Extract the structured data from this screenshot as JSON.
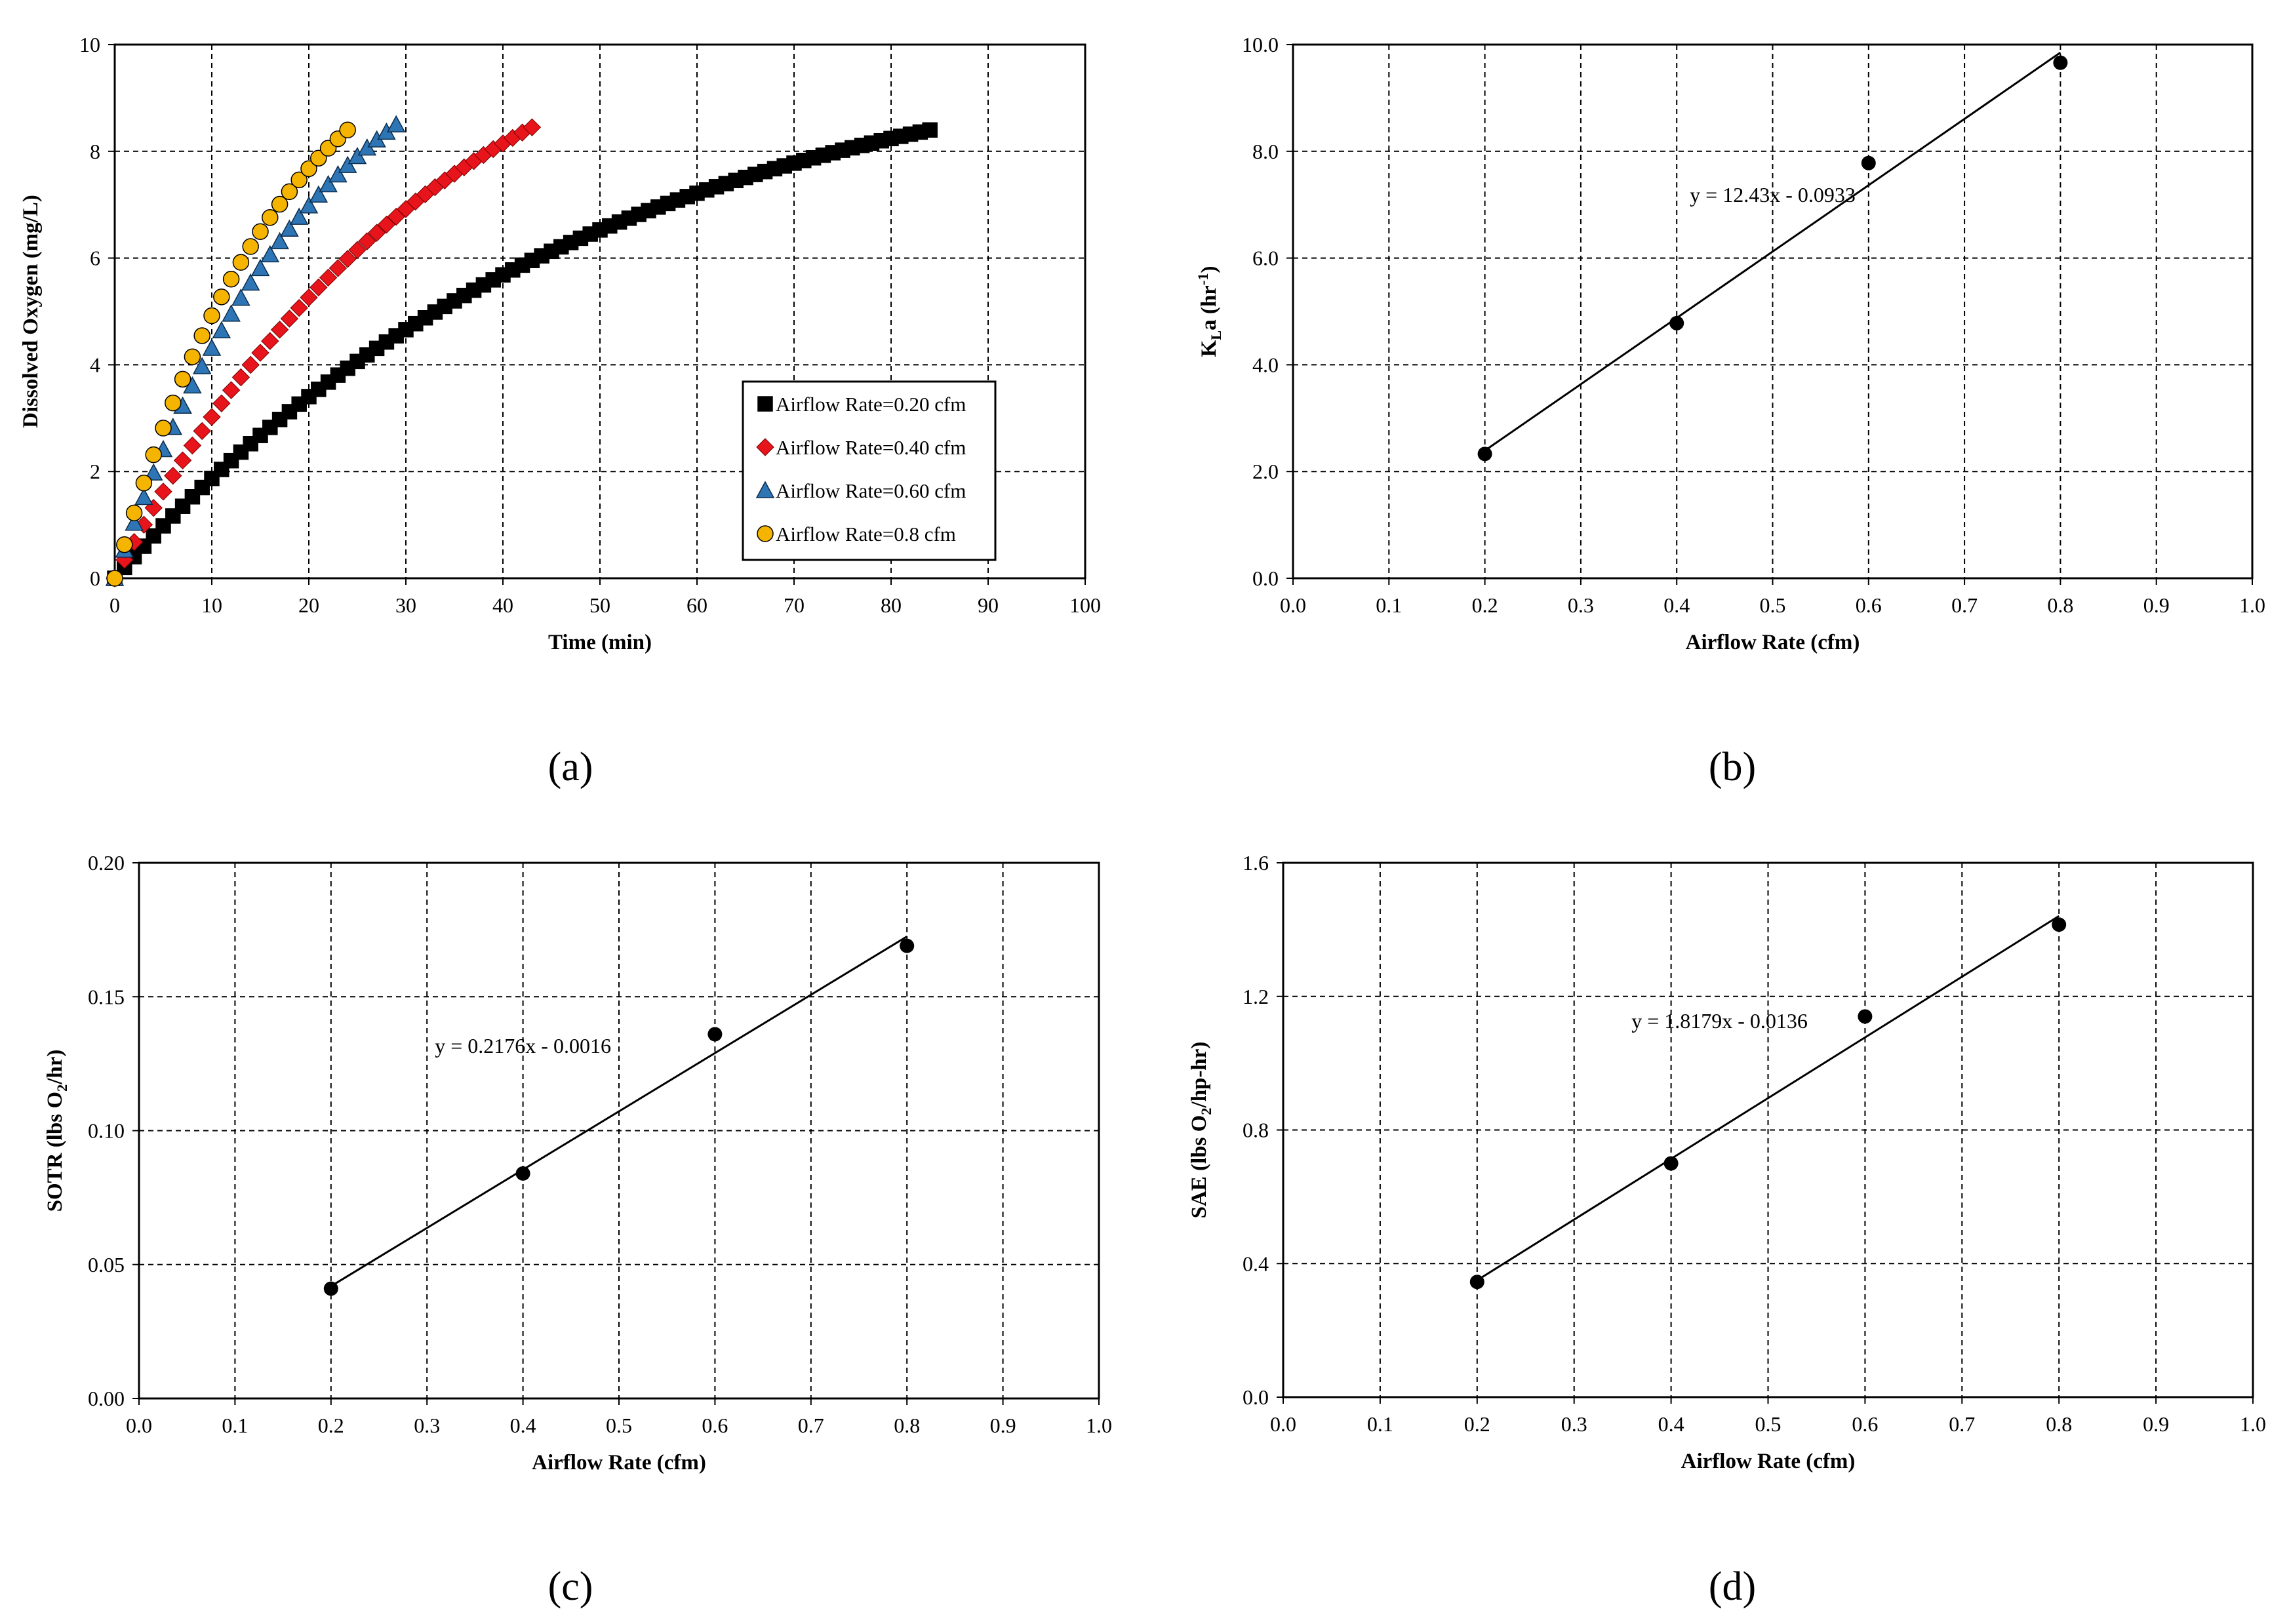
{
  "chart_data": [
    {
      "type": "scatter",
      "caption": "(a)",
      "caption_label": "a",
      "title": "",
      "xlabel": "Time (min)",
      "ylabel": "Dissolved Oxygen (mg/L)",
      "xlim": [
        0,
        100
      ],
      "ylim": [
        0,
        10
      ],
      "x_ticks": [
        "0",
        "10",
        "20",
        "30",
        "40",
        "50",
        "60",
        "70",
        "80",
        "90",
        "100"
      ],
      "y_ticks": [
        "0",
        "2",
        "4",
        "6",
        "8",
        "10"
      ],
      "grid": true,
      "legend_position": "lower-right",
      "series": [
        {
          "name": "Airflow Rate=0.20 cfm",
          "marker": "square",
          "color": "#000000",
          "x_start": 0,
          "x_end": 84,
          "x_step": 1,
          "y_start": 0,
          "y_end": 8.4,
          "k": 0.02
        },
        {
          "name": "Airflow Rate=0.40 cfm",
          "marker": "diamond",
          "color": "#e8141b",
          "x_start": 0,
          "x_end": 43,
          "x_step": 1,
          "y_start": 0,
          "y_end": 8.45,
          "k": 0.03
        },
        {
          "name": "Airflow Rate=0.60 cfm",
          "marker": "triangle",
          "color": "#2e75b6",
          "x_start": 0,
          "x_end": 29,
          "x_step": 1,
          "y_start": 0,
          "y_end": 8.5,
          "k": 0.048
        },
        {
          "name": "Airflow Rate=0.8 cfm",
          "marker": "circle",
          "color": "#f5b400",
          "x_start": 0,
          "x_end": 24,
          "x_step": 1,
          "y_start": 0,
          "y_end": 8.4,
          "k": 0.058
        }
      ]
    },
    {
      "type": "scatter",
      "caption": "(b)",
      "caption_label": "b",
      "title": "",
      "xlabel": "Airflow Rate (cfm)",
      "ylabel": "K",
      "ylabel_sub": "L",
      "ylabel_post": "a (hr",
      "ylabel_sup": "-1",
      "ylabel_end": ")",
      "xlim": [
        0,
        1
      ],
      "ylim": [
        0,
        10
      ],
      "x_ticks": [
        "0.0",
        "0.1",
        "0.2",
        "0.3",
        "0.4",
        "0.5",
        "0.6",
        "0.7",
        "0.8",
        "0.9",
        "1.0"
      ],
      "y_ticks": [
        "0.0",
        "2.0",
        "4.0",
        "6.0",
        "8.0",
        "10.0"
      ],
      "grid": true,
      "points": {
        "x": [
          0.2,
          0.4,
          0.6,
          0.8
        ],
        "y": [
          2.33,
          4.78,
          7.78,
          9.66
        ]
      },
      "trendline": {
        "slope": 12.43,
        "intercept": -0.0933,
        "x_range": [
          0.2,
          0.8
        ]
      },
      "equation": "y = 12.43x - 0.0933",
      "equation_at": [
        0.5,
        7.05
      ]
    },
    {
      "type": "scatter",
      "caption": "(c)",
      "caption_label": "c",
      "title": "",
      "xlabel": "Airflow Rate (cfm)",
      "ylabel": "SOTR (lbs O",
      "ylabel_sub": "2",
      "ylabel_post": "/hr)",
      "xlim": [
        0,
        1
      ],
      "ylim": [
        0,
        0.2
      ],
      "x_ticks": [
        "0.0",
        "0.1",
        "0.2",
        "0.3",
        "0.4",
        "0.5",
        "0.6",
        "0.7",
        "0.8",
        "0.9",
        "1.0"
      ],
      "y_ticks": [
        "0.00",
        "0.05",
        "0.10",
        "0.15",
        "0.20"
      ],
      "grid": true,
      "points": {
        "x": [
          0.2,
          0.4,
          0.6,
          0.8
        ],
        "y": [
          0.041,
          0.084,
          0.136,
          0.169
        ]
      },
      "trendline": {
        "slope": 0.2176,
        "intercept": -0.0016,
        "x_range": [
          0.2,
          0.8
        ]
      },
      "equation": "y = 0.2176x - 0.0016",
      "equation_at": [
        0.4,
        0.129
      ]
    },
    {
      "type": "scatter",
      "caption": "(d)",
      "caption_label": "d",
      "title": "",
      "xlabel": "Airflow Rate (cfm)",
      "ylabel": "SAE (lbs O",
      "ylabel_sub": "2",
      "ylabel_post": "/hp-hr)",
      "xlim": [
        0,
        1
      ],
      "ylim": [
        0,
        1.6
      ],
      "x_ticks": [
        "0.0",
        "0.1",
        "0.2",
        "0.3",
        "0.4",
        "0.5",
        "0.6",
        "0.7",
        "0.8",
        "0.9",
        "1.0"
      ],
      "y_ticks": [
        "0.0",
        "0.4",
        "0.8",
        "1.2",
        "1.6"
      ],
      "grid": true,
      "points": {
        "x": [
          0.2,
          0.4,
          0.6,
          0.8
        ],
        "y": [
          0.345,
          0.7,
          1.14,
          1.415
        ]
      },
      "trendline": {
        "slope": 1.8179,
        "intercept": -0.0136,
        "x_range": [
          0.2,
          0.8
        ]
      },
      "equation": "y = 1.8179x - 0.0136",
      "equation_at": [
        0.45,
        1.105
      ]
    }
  ]
}
